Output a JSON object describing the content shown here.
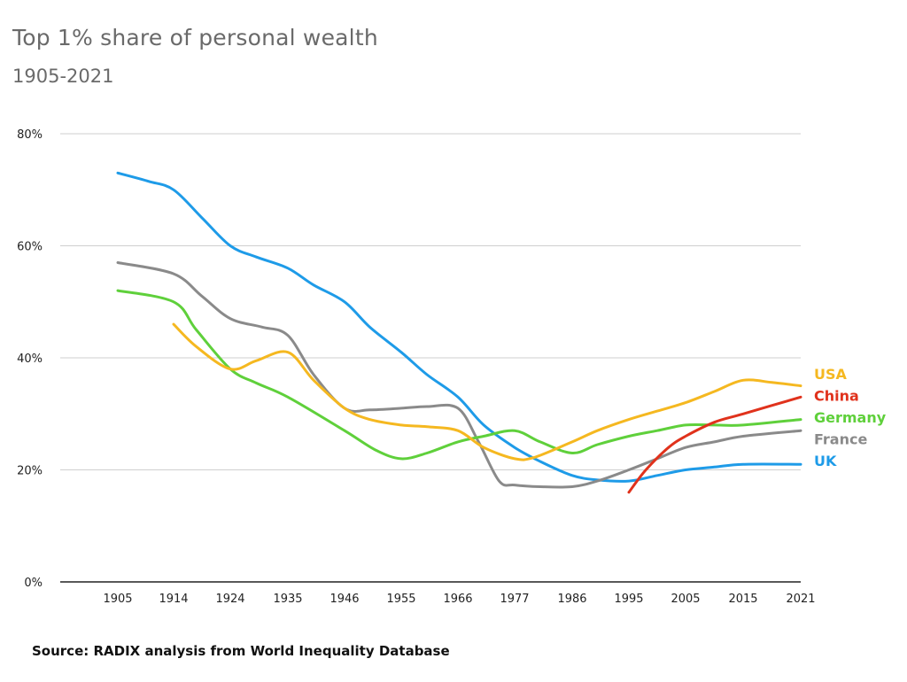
{
  "chart_data": {
    "type": "line",
    "title": "Top 1% share of personal wealth",
    "subtitle": "1905-2021",
    "source": "Source: RADIX analysis from World Inequality Database",
    "xlabel": "",
    "ylabel": "",
    "x_ticks": [
      "1905",
      "1914",
      "1924",
      "1935",
      "1946",
      "1955",
      "1966",
      "1977",
      "1986",
      "1995",
      "2005",
      "2015",
      "2021"
    ],
    "y_ticks": [
      "0%",
      "20%",
      "40%",
      "60%",
      "80%"
    ],
    "ylim": [
      0,
      80
    ],
    "grid": "horizontal",
    "legend": "right-end labels",
    "series": [
      {
        "name": "UK",
        "color": "#1e9be8",
        "points": [
          [
            1905,
            73
          ],
          [
            1910,
            71.5
          ],
          [
            1914,
            70
          ],
          [
            1919,
            65
          ],
          [
            1924,
            60
          ],
          [
            1929,
            58
          ],
          [
            1935,
            56
          ],
          [
            1940,
            53
          ],
          [
            1946,
            50
          ],
          [
            1950,
            45.5
          ],
          [
            1955,
            41
          ],
          [
            1960,
            37
          ],
          [
            1966,
            33
          ],
          [
            1971,
            28
          ],
          [
            1977,
            24
          ],
          [
            1981,
            21.5
          ],
          [
            1986,
            19
          ],
          [
            1990,
            18.2
          ],
          [
            1995,
            18
          ],
          [
            2000,
            19
          ],
          [
            2005,
            20
          ],
          [
            2010,
            20.5
          ],
          [
            2015,
            21
          ],
          [
            2021,
            21
          ]
        ]
      },
      {
        "name": "France",
        "color": "#8a8a8a",
        "points": [
          [
            1905,
            57
          ],
          [
            1914,
            55
          ],
          [
            1919,
            51
          ],
          [
            1924,
            47
          ],
          [
            1930,
            45.5
          ],
          [
            1935,
            44
          ],
          [
            1940,
            37
          ],
          [
            1946,
            31
          ],
          [
            1950,
            30.7
          ],
          [
            1955,
            31
          ],
          [
            1960,
            31.3
          ],
          [
            1966,
            31
          ],
          [
            1970,
            25
          ],
          [
            1974,
            18
          ],
          [
            1977,
            17.3
          ],
          [
            1981,
            17
          ],
          [
            1986,
            17
          ],
          [
            1990,
            18
          ],
          [
            1995,
            20
          ],
          [
            2000,
            22
          ],
          [
            2005,
            24
          ],
          [
            2010,
            25
          ],
          [
            2015,
            26
          ],
          [
            2021,
            27
          ]
        ]
      },
      {
        "name": "Germany",
        "color": "#5fd03b",
        "points": [
          [
            1905,
            52
          ],
          [
            1914,
            50
          ],
          [
            1918,
            45
          ],
          [
            1924,
            38
          ],
          [
            1929,
            35.5
          ],
          [
            1935,
            33
          ],
          [
            1946,
            27
          ],
          [
            1951,
            23.5
          ],
          [
            1955,
            22
          ],
          [
            1960,
            23
          ],
          [
            1966,
            25
          ],
          [
            1971,
            26
          ],
          [
            1977,
            27
          ],
          [
            1981,
            25
          ],
          [
            1986,
            23
          ],
          [
            1990,
            24.5
          ],
          [
            1995,
            26
          ],
          [
            2000,
            27
          ],
          [
            2005,
            28
          ],
          [
            2010,
            28
          ],
          [
            2015,
            28
          ],
          [
            2021,
            29
          ]
        ]
      },
      {
        "name": "USA",
        "color": "#f5b820",
        "points": [
          [
            1914,
            46
          ],
          [
            1918,
            42
          ],
          [
            1924,
            38
          ],
          [
            1929,
            39.5
          ],
          [
            1935,
            41
          ],
          [
            1940,
            36
          ],
          [
            1946,
            31
          ],
          [
            1950,
            29
          ],
          [
            1955,
            28
          ],
          [
            1960,
            27.7
          ],
          [
            1966,
            27
          ],
          [
            1971,
            24
          ],
          [
            1977,
            22
          ],
          [
            1980,
            22.2
          ],
          [
            1986,
            25
          ],
          [
            1990,
            27
          ],
          [
            1995,
            29
          ],
          [
            2000,
            30.5
          ],
          [
            2005,
            32
          ],
          [
            2010,
            34
          ],
          [
            2015,
            36
          ],
          [
            2018,
            35.6
          ],
          [
            2021,
            35
          ]
        ]
      },
      {
        "name": "China",
        "color": "#e0321c",
        "points": [
          [
            1995,
            16
          ],
          [
            1998,
            20
          ],
          [
            2002,
            24
          ],
          [
            2005,
            26
          ],
          [
            2010,
            28.5
          ],
          [
            2015,
            30
          ],
          [
            2021,
            33
          ]
        ]
      }
    ],
    "legend_order": [
      "USA",
      "China",
      "Germany",
      "France",
      "UK"
    ]
  }
}
